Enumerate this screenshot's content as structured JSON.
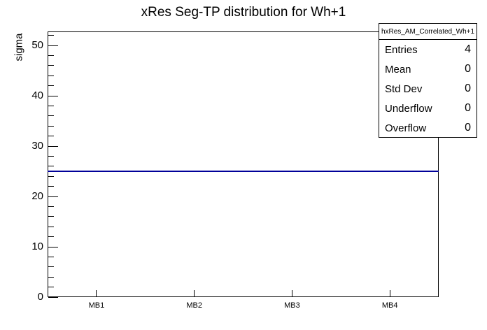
{
  "chart_data": {
    "type": "bar",
    "title": "xRes Seg-TP distribution for Wh+1",
    "ylabel": "sigma",
    "xlabel": "",
    "categories": [
      "MB1",
      "MB2",
      "MB3",
      "MB4"
    ],
    "values": [
      25,
      25,
      25,
      25
    ],
    "ylim": [
      0,
      52.8
    ],
    "y_major_ticks": [
      0,
      10,
      20,
      30,
      40,
      50
    ],
    "y_minor_step": 2,
    "line_color": "#000099",
    "axis_color": "#000000",
    "grid": false,
    "legend_position": "top-right-stats-box"
  },
  "stats_box": {
    "name": "hxRes_AM_Correlated_Wh+1",
    "rows": [
      {
        "label": "Entries",
        "value": "4"
      },
      {
        "label": "Mean",
        "value": "0"
      },
      {
        "label": "Std Dev",
        "value": "0"
      },
      {
        "label": "Underflow",
        "value": "0"
      },
      {
        "label": "Overflow",
        "value": "0"
      }
    ]
  }
}
